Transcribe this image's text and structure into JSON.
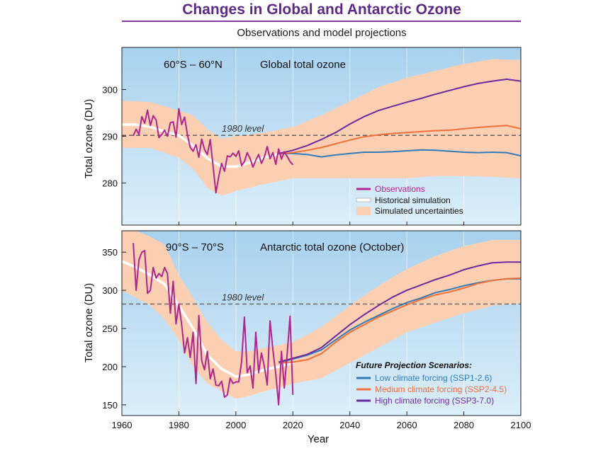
{
  "title": "Changes in Global and Antarctic Ozone",
  "subtitle": "Observations and model projections",
  "colors": {
    "title": "#5b2a86",
    "background_top": "#a8d1ee",
    "background_bottom": "#d9ecf8",
    "uncertainty": "#fbd0b2",
    "observations": "#b0248f",
    "historical": "#ffffff",
    "low": "#2f7bb8",
    "medium": "#f0703a",
    "high": "#6b2b9e",
    "reference": "#555555"
  },
  "chart_data": [
    {
      "type": "line",
      "region": "60°S – 60°N",
      "subtitle": "Global total ozone",
      "xlabel": "",
      "ylabel": "Total ozone (DU)",
      "xlim": [
        1960,
        2100
      ],
      "ylim": [
        271,
        309
      ],
      "yticks": [
        280,
        290,
        300
      ],
      "reference": {
        "label": "1980 level",
        "value": 290.2
      },
      "legend": {
        "items": [
          {
            "label": "Observations",
            "kind": "line",
            "color": "#b0248f"
          },
          {
            "label": "Historical simulation",
            "kind": "line-white",
            "color": "#ffffff"
          },
          {
            "label": "Simulated uncertainties",
            "kind": "band",
            "color": "#fbd0b2"
          }
        ]
      },
      "observations": {
        "x": [
          1964,
          1965,
          1966,
          1967,
          1968,
          1969,
          1970,
          1971,
          1972,
          1973,
          1974,
          1975,
          1976,
          1977,
          1978,
          1979,
          1980,
          1981,
          1982,
          1983,
          1984,
          1985,
          1986,
          1987,
          1988,
          1989,
          1990,
          1991,
          1992,
          1993,
          1994,
          1995,
          1996,
          1997,
          1998,
          1999,
          2000,
          2001,
          2002,
          2003,
          2004,
          2005,
          2006,
          2007,
          2008,
          2009,
          2010,
          2011,
          2012,
          2013,
          2014,
          2015,
          2016,
          2017,
          2018,
          2019,
          2020
        ],
        "y": [
          290.1,
          291.5,
          290.4,
          294.2,
          292.8,
          295.6,
          292.3,
          294.4,
          293.5,
          289.7,
          290.4,
          291.3,
          290.0,
          292.9,
          293.1,
          289.8,
          295.9,
          292.5,
          294.1,
          290.3,
          287.6,
          286.8,
          288.2,
          285.5,
          289.4,
          287.2,
          286.1,
          289.3,
          283.6,
          277.9,
          281.4,
          284.2,
          282.5,
          285.8,
          285.6,
          286.4,
          285.7,
          286.9,
          283.7,
          284.6,
          286.5,
          285.2,
          283.4,
          284.9,
          286.1,
          284.2,
          285.6,
          287.8,
          285.2,
          286.5,
          284.0,
          287.3,
          285.1,
          286.7,
          285.7,
          284.6,
          283.9
        ]
      },
      "historical": {
        "x": [
          1960,
          1965,
          1970,
          1975,
          1980,
          1985,
          1990,
          1995,
          2000,
          2005,
          2010,
          2015,
          2020
        ],
        "y": [
          292.5,
          292.5,
          292.0,
          291.0,
          290.2,
          288.0,
          285.3,
          283.5,
          283.5,
          284.4,
          285.5,
          286.2,
          286.3
        ]
      },
      "uncertainty": {
        "x": [
          1960,
          1970,
          1980,
          1985,
          1990,
          1995,
          2000,
          2010,
          2020,
          2030,
          2040,
          2050,
          2060,
          2070,
          2080,
          2090,
          2100
        ],
        "upper": [
          297.6,
          297.3,
          295.5,
          294.5,
          291.5,
          289.5,
          290.0,
          290.8,
          292.0,
          294.5,
          297.5,
          300.5,
          302.5,
          304.0,
          305.5,
          306.5,
          306.3
        ],
        "lower": [
          287.5,
          287.5,
          285.4,
          283.0,
          279.0,
          277.3,
          278.3,
          279.8,
          281.0,
          281.0,
          281.0,
          281.0,
          281.0,
          281.5,
          281.5,
          281.3,
          281.0
        ]
      },
      "series": [
        {
          "name": "Low climate forcing (SSP1-2.6)",
          "x": [
            2015,
            2020,
            2025,
            2030,
            2035,
            2040,
            2045,
            2050,
            2055,
            2060,
            2065,
            2070,
            2075,
            2080,
            2085,
            2090,
            2095,
            2100
          ],
          "y": [
            286.2,
            286.3,
            286.1,
            285.6,
            286.0,
            286.3,
            286.6,
            286.6,
            286.7,
            286.9,
            287.1,
            287.0,
            286.8,
            286.6,
            286.5,
            286.6,
            286.5,
            285.8
          ]
        },
        {
          "name": "Medium climate forcing (SSP2-4.5)",
          "x": [
            2015,
            2020,
            2025,
            2030,
            2035,
            2040,
            2045,
            2050,
            2055,
            2060,
            2065,
            2070,
            2075,
            2080,
            2085,
            2090,
            2095,
            2100
          ],
          "y": [
            286.2,
            286.5,
            287.0,
            287.6,
            288.4,
            289.2,
            289.9,
            290.3,
            290.6,
            290.8,
            291.0,
            291.2,
            291.3,
            291.6,
            291.9,
            292.1,
            292.3,
            291.6
          ]
        },
        {
          "name": "High climate forcing (SSP3-7.0)",
          "x": [
            2015,
            2020,
            2025,
            2030,
            2035,
            2040,
            2045,
            2050,
            2055,
            2060,
            2065,
            2070,
            2075,
            2080,
            2085,
            2090,
            2095,
            2100
          ],
          "y": [
            286.3,
            287.0,
            288.0,
            289.3,
            290.8,
            292.6,
            294.2,
            295.5,
            296.4,
            297.3,
            298.1,
            299.0,
            299.8,
            300.6,
            301.3,
            301.8,
            302.2,
            301.8
          ]
        }
      ]
    },
    {
      "type": "line",
      "region": "90°S – 70°S",
      "subtitle": "Antarctic total ozone (October)",
      "xlabel": "Year",
      "ylabel": "Total ozone (DU)",
      "xlim": [
        1960,
        2100
      ],
      "ylim": [
        136,
        378
      ],
      "xticks": [
        1960,
        1980,
        2000,
        2020,
        2040,
        2060,
        2080,
        2100
      ],
      "yticks": [
        150,
        200,
        250,
        300,
        350
      ],
      "reference": {
        "label": "1980 level",
        "value": 282
      },
      "legend": {
        "heading": "Future Projection Scenarios:",
        "items": [
          {
            "label": "Low climate forcing (SSP1-2.6)",
            "color": "#2f7bb8"
          },
          {
            "label": "Medium climate forcing (SSP2-4.5)",
            "color": "#f0703a"
          },
          {
            "label": "High climate forcing (SSP3-7.0)",
            "color": "#6b2b9e"
          }
        ]
      },
      "observations": {
        "x": [
          1964,
          1965,
          1966,
          1967,
          1968,
          1969,
          1970,
          1971,
          1972,
          1973,
          1974,
          1975,
          1976,
          1977,
          1978,
          1979,
          1980,
          1981,
          1982,
          1983,
          1984,
          1985,
          1986,
          1987,
          1988,
          1989,
          1990,
          1991,
          1992,
          1993,
          1994,
          1995,
          1996,
          1997,
          1998,
          1999,
          2000,
          2001,
          2002,
          2003,
          2004,
          2005,
          2006,
          2007,
          2008,
          2009,
          2010,
          2011,
          2012,
          2013,
          2014,
          2015,
          2016,
          2017,
          2018,
          2019,
          2020
        ],
        "y": [
          362,
          300,
          340,
          350,
          352,
          296,
          300,
          330,
          316,
          322,
          318,
          330,
          322,
          270,
          312,
          256,
          282,
          255,
          218,
          238,
          212,
          245,
          178,
          267,
          208,
          196,
          220,
          184,
          197,
          176,
          175,
          181,
          160,
          163,
          185,
          178,
          180,
          180,
          206,
          265,
          192,
          201,
          172,
          245,
          192,
          218,
          200,
          176,
          260,
          222,
          190,
          150,
          220,
          172,
          216,
          266,
          163
        ]
      },
      "historical": {
        "x": [
          1960,
          1965,
          1970,
          1975,
          1980,
          1985,
          1990,
          1995,
          2000,
          2005,
          2010,
          2015,
          2020
        ],
        "y": [
          338,
          330,
          320,
          308,
          280,
          250,
          215,
          197,
          187,
          190,
          196,
          200,
          205
        ]
      },
      "uncertainty": {
        "x": [
          1960,
          1965,
          1970,
          1975,
          1980,
          1985,
          1990,
          1995,
          2000,
          2005,
          2010,
          2015,
          2020,
          2030,
          2040,
          2050,
          2060,
          2070,
          2080,
          2090,
          2100
        ],
        "upper": [
          378,
          378,
          370,
          360,
          320,
          290,
          258,
          235,
          220,
          220,
          225,
          228,
          232,
          252,
          280,
          306,
          328,
          345,
          358,
          366,
          366
        ],
        "lower": [
          300,
          290,
          280,
          262,
          235,
          200,
          178,
          168,
          158,
          162,
          168,
          172,
          178,
          185,
          205,
          225,
          245,
          258,
          270,
          280,
          283
        ]
      },
      "series": [
        {
          "name": "Low climate forcing (SSP1-2.6)",
          "x": [
            2015,
            2020,
            2025,
            2030,
            2035,
            2040,
            2045,
            2050,
            2055,
            2060,
            2065,
            2070,
            2075,
            2080,
            2085,
            2090,
            2095,
            2100
          ],
          "y": [
            205,
            210,
            215,
            222,
            235,
            248,
            258,
            267,
            276,
            284,
            290,
            297,
            301,
            306,
            310,
            313,
            315,
            315
          ]
        },
        {
          "name": "Medium climate forcing (SSP2-4.5)",
          "x": [
            2015,
            2020,
            2025,
            2030,
            2035,
            2040,
            2045,
            2050,
            2055,
            2060,
            2065,
            2070,
            2075,
            2080,
            2085,
            2090,
            2095,
            2100
          ],
          "y": [
            205,
            206,
            209,
            217,
            232,
            245,
            255,
            265,
            273,
            281,
            288,
            294,
            298,
            303,
            309,
            313,
            315,
            316
          ]
        },
        {
          "name": "High climate forcing (SSP3-7.0)",
          "x": [
            2015,
            2020,
            2025,
            2030,
            2035,
            2040,
            2045,
            2050,
            2055,
            2060,
            2065,
            2070,
            2075,
            2080,
            2085,
            2090,
            2095,
            2100
          ],
          "y": [
            206,
            211,
            216,
            225,
            240,
            255,
            268,
            280,
            291,
            300,
            307,
            314,
            320,
            327,
            332,
            336,
            337,
            337
          ]
        }
      ]
    }
  ]
}
